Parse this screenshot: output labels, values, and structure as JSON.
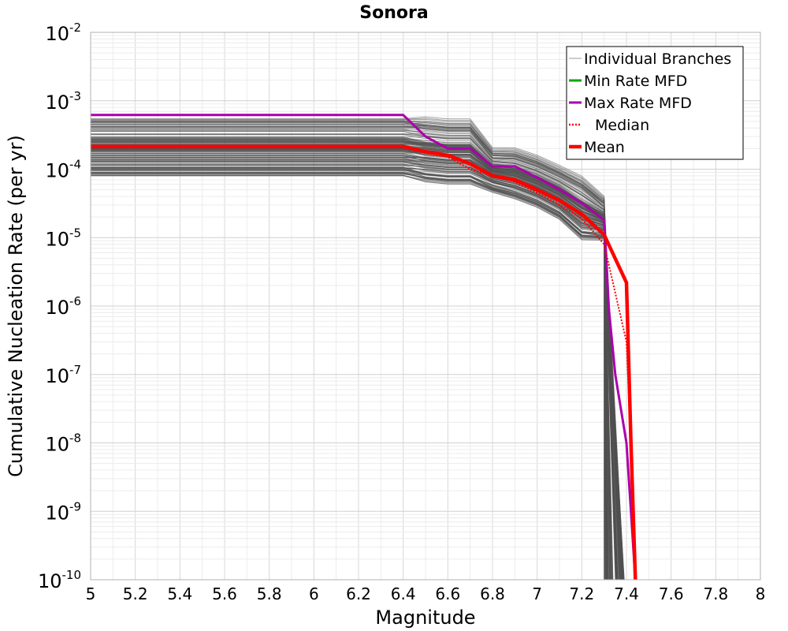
{
  "chart_data": {
    "type": "line",
    "title": "Sonora",
    "xlabel": "Magnitude",
    "ylabel": "Cumulative Nucleation Rate (per yr)",
    "xlim": [
      5,
      8
    ],
    "ylim": [
      1e-10,
      0.01
    ],
    "yscale": "log",
    "grid": true,
    "x_ticks": [
      "5",
      "5.2",
      "5.4",
      "5.6",
      "5.8",
      "6",
      "6.2",
      "6.4",
      "6.6",
      "6.8",
      "7",
      "7.2",
      "7.4",
      "7.6",
      "7.8",
      "8"
    ],
    "y_ticks": [
      {
        "exp": -2,
        "base": "10",
        "sup": "-2"
      },
      {
        "exp": -3,
        "base": "10",
        "sup": "-3"
      },
      {
        "exp": -4,
        "base": "10",
        "sup": "-4"
      },
      {
        "exp": -5,
        "base": "10",
        "sup": "-5"
      },
      {
        "exp": -6,
        "base": "10",
        "sup": "-6"
      },
      {
        "exp": -7,
        "base": "10",
        "sup": "-7"
      },
      {
        "exp": -8,
        "base": "10",
        "sup": "-8"
      },
      {
        "exp": -9,
        "base": "10",
        "sup": "-9"
      },
      {
        "exp": -10,
        "base": "10",
        "sup": "-10"
      }
    ],
    "legend_position": "top-right",
    "legend": [
      {
        "name": "Individual Branches",
        "color": "#9a9a9a",
        "style": "thin"
      },
      {
        "name": "Min Rate MFD",
        "color": "#00aa00",
        "style": "solid"
      },
      {
        "name": "Max Rate MFD",
        "color": "#aa00aa",
        "style": "solid"
      },
      {
        "name": "Median",
        "color": "#ff0000",
        "style": "dotted"
      },
      {
        "name": "Mean",
        "color": "#ff0000",
        "style": "thick"
      }
    ],
    "branch_envelope": {
      "name": "Individual Branches",
      "color": "#505050",
      "upper": {
        "x": [
          5.0,
          6.4,
          6.6,
          6.7,
          6.8,
          6.9,
          7.0,
          7.1,
          7.2,
          7.3,
          7.4
        ],
        "y": [
          0.00055,
          0.00055,
          0.00048,
          0.00048,
          0.00018,
          0.00018,
          0.00014,
          0.0001,
          7e-05,
          3.5e-05,
          1.5e-05
        ]
      },
      "lower": {
        "x": [
          5.0,
          6.4,
          6.5,
          6.6,
          6.7,
          6.8,
          6.9,
          7.0,
          7.1,
          7.2,
          7.25
        ],
        "y": [
          8e-05,
          8e-05,
          7e-05,
          6.5e-05,
          6.5e-05,
          5e-05,
          4e-05,
          3e-05,
          2e-05,
          1e-05,
          2e-06
        ]
      },
      "count": 150
    },
    "series": [
      {
        "name": "Max Rate MFD",
        "color": "#aa00aa",
        "width": 3,
        "x": [
          5.0,
          6.4,
          6.5,
          6.6,
          6.7,
          6.75,
          6.8,
          6.9,
          7.0,
          7.1,
          7.2,
          7.3,
          7.32,
          7.35,
          7.4,
          7.42,
          7.44
        ],
        "y": [
          0.00062,
          0.00062,
          0.0003,
          0.0002,
          0.0002,
          0.00015,
          0.00011,
          0.00011,
          7.5e-05,
          5e-05,
          3.2e-05,
          1.8e-05,
          1e-06,
          1e-07,
          1e-08,
          1e-09,
          1e-10
        ]
      },
      {
        "name": "Median",
        "color": "#ff0000",
        "width": 2,
        "dash": "2,2",
        "x": [
          5.0,
          6.4,
          6.5,
          6.6,
          6.7,
          6.8,
          6.9,
          7.0,
          7.1,
          7.2,
          7.3,
          7.4,
          7.42,
          7.44
        ],
        "y": [
          0.000215,
          0.000215,
          0.00017,
          0.00015,
          0.0001,
          8e-05,
          6.5e-05,
          4.5e-05,
          3e-05,
          1.9e-05,
          8e-06,
          3e-07,
          1e-08,
          1e-10
        ]
      },
      {
        "name": "Mean",
        "color": "#ff0000",
        "width": 4.5,
        "x": [
          5.0,
          6.4,
          6.5,
          6.6,
          6.7,
          6.8,
          6.9,
          7.0,
          7.1,
          7.2,
          7.3,
          7.4,
          7.42,
          7.44
        ],
        "y": [
          0.000215,
          0.000215,
          0.00018,
          0.00016,
          0.00012,
          8e-05,
          7e-05,
          5e-05,
          3.5e-05,
          2.2e-05,
          1.1e-05,
          2.2e-06,
          1e-08,
          1e-10
        ]
      }
    ]
  }
}
